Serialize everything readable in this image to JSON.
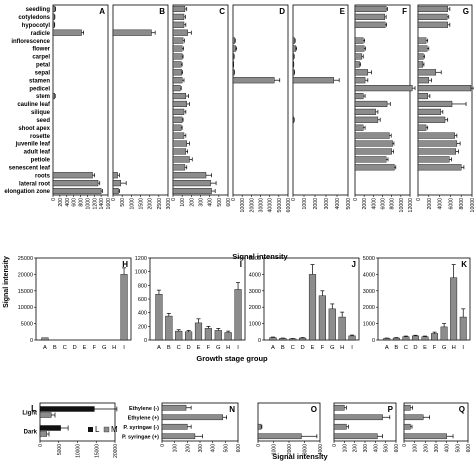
{
  "colors": {
    "bar": "#8c8c8c",
    "bar_dark": "#111111",
    "axis": "#000000"
  },
  "figure": {
    "top_xlabel": "Signal intensity",
    "middle_xlabel": "Growth stage group",
    "middle_ylabel": "Signal intensity",
    "bottom_xlabel": "Signal intensity"
  },
  "chart_data": [
    {
      "id": "A",
      "type": "bar",
      "orientation": "horizontal",
      "categories": [
        "seedling",
        "cotyledons",
        "hypocotyl",
        "radicle",
        "inflorescence",
        "flower",
        "carpel",
        "petal",
        "sepal",
        "stamen",
        "pedicel",
        "stem",
        "cauline leaf",
        "silique",
        "seed",
        "shoot apex",
        "rosette",
        "juvenile leaf",
        "adult leaf",
        "petiole",
        "senescent leaf",
        "roots",
        "lateral root",
        "elongation zone"
      ],
      "values": [
        60,
        45,
        40,
        830,
        0,
        0,
        0,
        0,
        0,
        0,
        0,
        50,
        0,
        0,
        0,
        0,
        0,
        0,
        0,
        0,
        0,
        1150,
        1310,
        1400
      ],
      "errors": [
        15,
        10,
        10,
        60,
        0,
        0,
        0,
        0,
        0,
        0,
        0,
        15,
        0,
        0,
        0,
        0,
        0,
        0,
        0,
        0,
        0,
        60,
        50,
        40
      ],
      "xlim": [
        0,
        1600
      ],
      "xticks": [
        "0",
        "200",
        "400",
        "600",
        "800",
        "1000",
        "1200",
        "1400",
        "1600"
      ]
    },
    {
      "id": "B",
      "type": "bar",
      "orientation": "horizontal",
      "values": [
        0,
        0,
        0,
        2100,
        0,
        0,
        0,
        0,
        0,
        0,
        0,
        0,
        0,
        0,
        0,
        0,
        0,
        0,
        0,
        0,
        0,
        250,
        420,
        300
      ],
      "errors": [
        0,
        0,
        0,
        200,
        0,
        0,
        0,
        0,
        0,
        0,
        0,
        0,
        0,
        0,
        0,
        0,
        0,
        0,
        0,
        0,
        0,
        100,
        300,
        60
      ],
      "xlim": [
        0,
        3000
      ],
      "xticks": [
        "0",
        "500",
        "1000",
        "1500",
        "2000",
        "2500",
        "3000"
      ]
    },
    {
      "id": "C",
      "type": "bar",
      "orientation": "horizontal",
      "values": [
        130,
        120,
        120,
        160,
        110,
        100,
        100,
        90,
        95,
        100,
        80,
        140,
        150,
        120,
        100,
        90,
        120,
        150,
        140,
        180,
        130,
        360,
        410,
        420
      ],
      "errors": [
        20,
        15,
        20,
        40,
        15,
        15,
        10,
        10,
        10,
        20,
        10,
        30,
        30,
        20,
        10,
        10,
        20,
        30,
        20,
        30,
        20,
        60,
        60,
        40
      ],
      "xlim": [
        0,
        600
      ],
      "xticks": [
        "0",
        "100",
        "200",
        "300",
        "400",
        "500",
        "600"
      ]
    },
    {
      "id": "D",
      "type": "bar",
      "orientation": "horizontal",
      "values": [
        0,
        0,
        0,
        0,
        2000,
        3000,
        1000,
        500,
        1200,
        45000,
        0,
        0,
        0,
        0,
        0,
        0,
        0,
        0,
        0,
        0,
        0,
        0,
        0,
        0
      ],
      "errors": [
        0,
        0,
        0,
        0,
        500,
        1000,
        300,
        200,
        400,
        6000,
        0,
        0,
        0,
        0,
        0,
        0,
        0,
        0,
        0,
        0,
        0,
        0,
        0,
        0
      ],
      "xlim": [
        0,
        60000
      ],
      "xticks": [
        "0",
        "10000",
        "20000",
        "30000",
        "40000",
        "50000",
        "60000"
      ]
    },
    {
      "id": "E",
      "type": "bar",
      "orientation": "horizontal",
      "values": [
        0,
        0,
        0,
        0,
        150,
        250,
        80,
        50,
        100,
        3700,
        0,
        0,
        0,
        0,
        80,
        0,
        0,
        0,
        0,
        0,
        0,
        0,
        0,
        0
      ],
      "errors": [
        0,
        0,
        0,
        0,
        50,
        80,
        30,
        20,
        40,
        500,
        0,
        0,
        0,
        0,
        30,
        0,
        0,
        0,
        0,
        0,
        0,
        0,
        0,
        0
      ],
      "xlim": [
        0,
        5000
      ],
      "xticks": [
        "0",
        "1000",
        "2000",
        "3000",
        "4000",
        "5000"
      ]
    },
    {
      "id": "F",
      "type": "bar",
      "orientation": "horizontal",
      "values": [
        6800,
        6500,
        6600,
        0,
        1800,
        2000,
        1500,
        1000,
        2800,
        2200,
        12500,
        1800,
        7000,
        4500,
        5000,
        1800,
        7500,
        8200,
        8000,
        6800,
        8600,
        0,
        0,
        0
      ],
      "errors": [
        300,
        300,
        300,
        0,
        300,
        300,
        300,
        200,
        800,
        600,
        600,
        400,
        700,
        500,
        500,
        400,
        400,
        300,
        400,
        400,
        300,
        0,
        0,
        0
      ],
      "xlim": [
        0,
        12000
      ],
      "xticks": [
        "0",
        "2000",
        "4000",
        "6000",
        "8000",
        "10000",
        "12000"
      ]
    },
    {
      "id": "G",
      "type": "bar",
      "orientation": "horizontal",
      "values": [
        5500,
        5400,
        5500,
        0,
        1500,
        1700,
        1000,
        900,
        3300,
        2000,
        9800,
        1800,
        6300,
        4200,
        5000,
        1500,
        6800,
        7200,
        7000,
        5800,
        8000,
        0,
        0,
        0
      ],
      "errors": [
        400,
        300,
        400,
        0,
        300,
        300,
        200,
        200,
        1000,
        500,
        600,
        400,
        2600,
        400,
        500,
        300,
        400,
        600,
        500,
        400,
        500,
        0,
        0,
        0
      ],
      "xlim": [
        0,
        10000
      ],
      "xticks": [
        "0",
        "2000",
        "4000",
        "6000",
        "8000",
        "10000"
      ]
    },
    {
      "id": "H",
      "type": "bar",
      "categories": [
        "A",
        "B",
        "C",
        "D",
        "E",
        "F",
        "G",
        "H",
        "I"
      ],
      "values": [
        700,
        0,
        0,
        0,
        0,
        0,
        0,
        0,
        20000
      ],
      "errors": [
        0,
        0,
        0,
        0,
        0,
        0,
        0,
        0,
        2000
      ],
      "ylim": [
        0,
        25000
      ],
      "yticks": [
        "0",
        "5000",
        "10000",
        "15000",
        "20000",
        "25000"
      ]
    },
    {
      "id": "I",
      "type": "bar",
      "categories": [
        "A",
        "B",
        "C",
        "D",
        "E",
        "F",
        "G",
        "H",
        "I"
      ],
      "values": [
        670,
        350,
        130,
        120,
        250,
        170,
        140,
        110,
        740
      ],
      "errors": [
        60,
        40,
        20,
        20,
        60,
        30,
        30,
        20,
        100
      ],
      "ylim": [
        0,
        1200
      ],
      "yticks": [
        "0",
        "200",
        "400",
        "600",
        "800",
        "1000",
        "1200"
      ]
    },
    {
      "id": "J",
      "type": "bar",
      "categories": [
        "A",
        "B",
        "C",
        "D",
        "E",
        "F",
        "G",
        "H",
        "I"
      ],
      "values": [
        150,
        100,
        70,
        120,
        4000,
        2700,
        1900,
        1400,
        250
      ],
      "errors": [
        30,
        20,
        20,
        30,
        600,
        300,
        300,
        300,
        50
      ],
      "ylim": [
        0,
        5000
      ],
      "yticks": [
        "0",
        "1000",
        "2000",
        "3000",
        "4000",
        "5000"
      ]
    },
    {
      "id": "K",
      "type": "bar",
      "categories": [
        "A",
        "B",
        "C",
        "D",
        "E",
        "F",
        "G",
        "H",
        "I"
      ],
      "values": [
        100,
        120,
        200,
        250,
        200,
        400,
        800,
        3800,
        1400
      ],
      "errors": [
        20,
        30,
        40,
        40,
        40,
        80,
        200,
        800,
        500
      ],
      "ylim": [
        0,
        5000
      ],
      "yticks": [
        "0",
        "1000",
        "2000",
        "3000",
        "4000",
        "5000"
      ]
    },
    {
      "id": "L",
      "type": "bar",
      "orientation": "horizontal",
      "categories": [
        "Light",
        "Dark"
      ],
      "legend": [
        "L",
        "M"
      ],
      "series": [
        {
          "name": "L",
          "color": "#111111",
          "values": [
            14500,
            5500
          ],
          "errors": [
            6000,
            2000
          ]
        },
        {
          "name": "M",
          "color": "#8c8c8c",
          "values": [
            3000,
            1800
          ],
          "errors": [
            1000,
            600
          ]
        }
      ],
      "xlim": [
        0,
        20000
      ],
      "xticks": [
        "0",
        "5000",
        "10000",
        "15000",
        "20000"
      ]
    },
    {
      "id": "N",
      "type": "bar",
      "orientation": "horizontal",
      "categories": [
        "Ethylene (-)",
        "Ethylene (+)",
        "P. syringae (-)",
        "P. syringae (+)"
      ],
      "values": [
        190,
        480,
        200,
        260
      ],
      "errors": [
        40,
        30,
        30,
        60
      ],
      "xlim": [
        0,
        600
      ],
      "xticks": [
        "0",
        "100",
        "200",
        "300",
        "400",
        "500",
        "600"
      ]
    },
    {
      "id": "O",
      "type": "bar",
      "orientation": "horizontal",
      "values": [
        0,
        0,
        200,
        2800
      ],
      "errors": [
        0,
        0,
        50,
        1000
      ],
      "xlim": [
        0,
        4000
      ],
      "xticks": [
        "0",
        "1000",
        "2000",
        "3000",
        "4000"
      ]
    },
    {
      "id": "P",
      "type": "bar",
      "orientation": "horizontal",
      "values": [
        100,
        470,
        120,
        420
      ],
      "errors": [
        20,
        70,
        20,
        50
      ],
      "xlim": [
        0,
        600
      ],
      "xticks": [
        "0",
        "100",
        "200",
        "300",
        "400",
        "500",
        "600"
      ]
    },
    {
      "id": "Q",
      "type": "bar",
      "orientation": "horizontal",
      "values": [
        60,
        180,
        60,
        400
      ],
      "errors": [
        20,
        60,
        15,
        60
      ],
      "xlim": [
        0,
        600
      ],
      "xticks": [
        "0",
        "100",
        "200",
        "300",
        "400",
        "500",
        "600"
      ]
    }
  ]
}
